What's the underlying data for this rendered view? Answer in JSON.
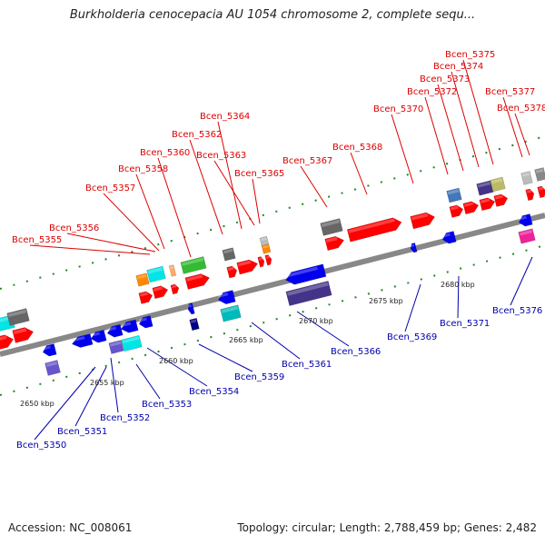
{
  "title": "Burkholderia cenocepacia AU 1054 chromosome 2, complete sequ...",
  "accession": "Accession: NC_008061",
  "topology": "Topology: circular; Length: 2,788,459 bp; Genes: 2,482",
  "colors": {
    "forward_label": "#dd0000",
    "reverse_label": "#0000aa",
    "backbone": "#888888",
    "tick": "#228822"
  },
  "scale_labels": [
    "2650 kbp",
    "2655 kbp",
    "2660 kbp",
    "2665 kbp",
    "2670 kbp",
    "2675 kbp",
    "2680 kbp"
  ],
  "forward_genes": [
    "Bcen_5355",
    "Bcen_5356",
    "Bcen_5357",
    "Bcen_5358",
    "Bcen_5360",
    "Bcen_5362",
    "Bcen_5364",
    "Bcen_5363",
    "Bcen_5365",
    "Bcen_5367",
    "Bcen_5368",
    "Bcen_5370",
    "Bcen_5372",
    "Bcen_5373",
    "Bcen_5374",
    "Bcen_5375",
    "Bcen_5377",
    "Bcen_5378"
  ],
  "reverse_genes": [
    "Bcen_5350",
    "Bcen_5351",
    "Bcen_5352",
    "Bcen_5353",
    "Bcen_5354",
    "Bcen_5359",
    "Bcen_5361",
    "Bcen_5366",
    "Bcen_5369",
    "Bcen_5371",
    "Bcen_5376"
  ]
}
